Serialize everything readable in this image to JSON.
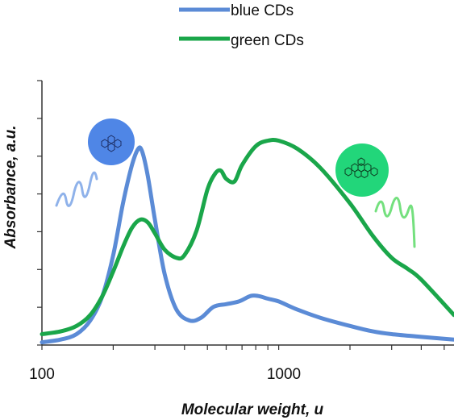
{
  "chart_data": {
    "type": "line",
    "title": "",
    "xlabel": "Molecular weight, u",
    "ylabel": "Absorbance, a.u.",
    "x_scale": "log",
    "xlim": [
      100,
      5500
    ],
    "ylim": [
      0,
      1
    ],
    "x_ticks": [
      100,
      1000
    ],
    "x_tick_labels": [
      "100",
      "1000"
    ],
    "y_tick_labels_shown": false,
    "grid": false,
    "legend_position": "top-center",
    "series": [
      {
        "name": "blue CDs",
        "color": "#5b8bd6",
        "x": [
          100,
          120,
          140,
          160,
          180,
          200,
          220,
          240,
          255,
          265,
          280,
          300,
          330,
          370,
          420,
          470,
          530,
          600,
          680,
          760,
          820,
          900,
          1000,
          1200,
          1500,
          2000,
          2500,
          3000,
          4000,
          5500
        ],
        "y": [
          0.01,
          0.02,
          0.04,
          0.09,
          0.18,
          0.33,
          0.52,
          0.66,
          0.72,
          0.71,
          0.62,
          0.46,
          0.26,
          0.13,
          0.09,
          0.1,
          0.14,
          0.15,
          0.16,
          0.18,
          0.18,
          0.17,
          0.16,
          0.13,
          0.1,
          0.07,
          0.05,
          0.04,
          0.03,
          0.02
        ]
      },
      {
        "name": "green CDs",
        "color": "#1aa64a",
        "x": [
          100,
          120,
          140,
          160,
          180,
          200,
          220,
          240,
          260,
          280,
          300,
          330,
          370,
          400,
          450,
          500,
          540,
          570,
          600,
          650,
          700,
          800,
          900,
          1000,
          1200,
          1500,
          2000,
          2500,
          3000,
          3500,
          4000,
          5500
        ],
        "y": [
          0.04,
          0.05,
          0.07,
          0.11,
          0.18,
          0.27,
          0.36,
          0.43,
          0.46,
          0.45,
          0.41,
          0.35,
          0.32,
          0.33,
          0.42,
          0.57,
          0.63,
          0.64,
          0.61,
          0.6,
          0.66,
          0.73,
          0.75,
          0.75,
          0.72,
          0.65,
          0.52,
          0.4,
          0.32,
          0.28,
          0.24,
          0.11
        ]
      }
    ],
    "annotations": [
      {
        "icon": "blue-carbon-dot-molecule-icon",
        "color": "#4f86e6"
      },
      {
        "icon": "green-carbon-dot-molecule-icon",
        "color": "#22d67a"
      },
      {
        "icon": "blue-wave-icon",
        "color": "#8fb2ea"
      },
      {
        "icon": "green-wave-icon",
        "color": "#74e07e"
      }
    ]
  }
}
